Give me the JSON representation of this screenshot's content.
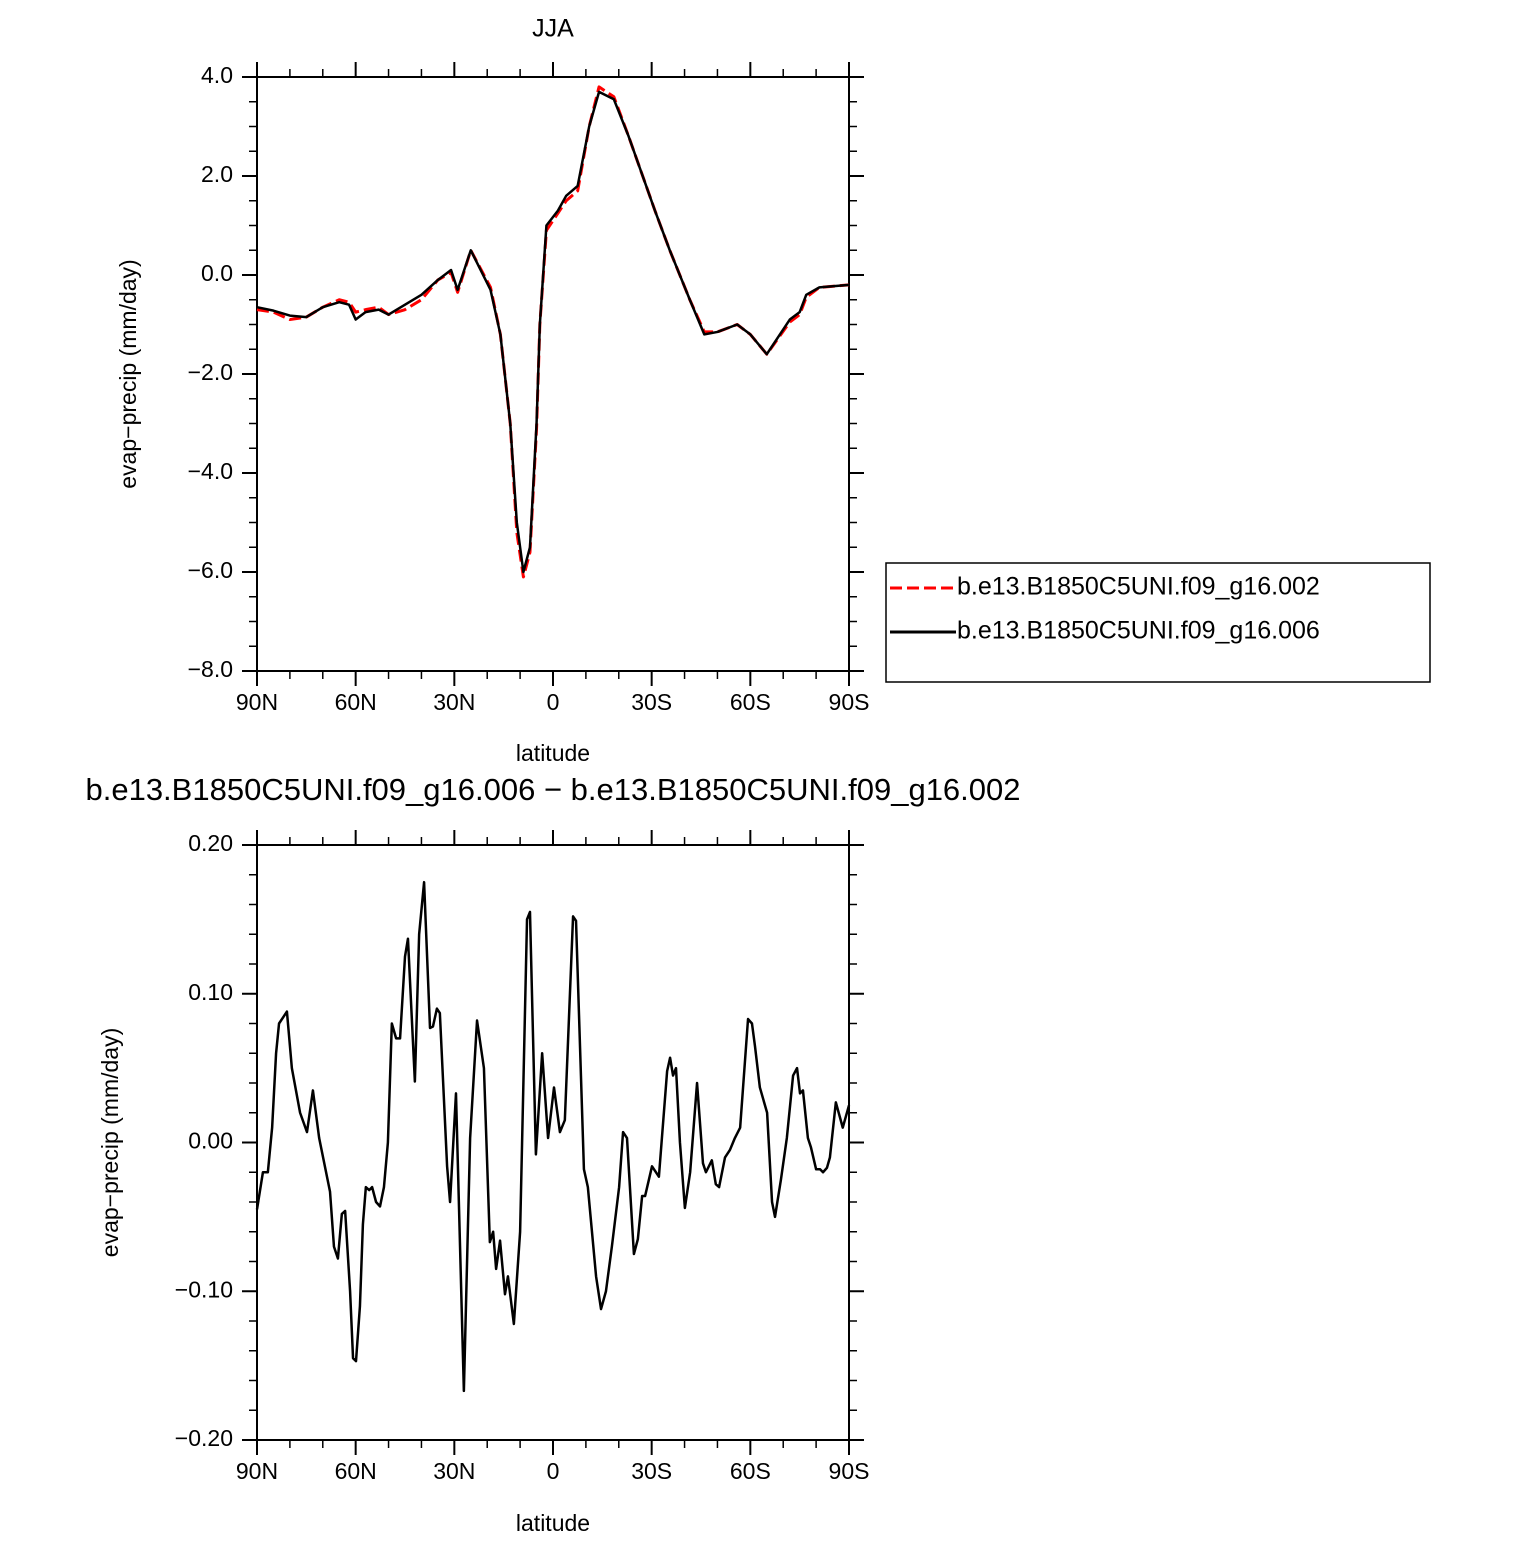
{
  "chart_data": [
    {
      "type": "line",
      "title": "JJA",
      "xlabel": "latitude",
      "ylabel": "evap−precip (mm/day)",
      "x": [
        90,
        85,
        80,
        75,
        70,
        65,
        62,
        60,
        57,
        53,
        50,
        45,
        40,
        35,
        31,
        29,
        25,
        19,
        16,
        13,
        11,
        9,
        7,
        5,
        4,
        2,
        -1.5,
        -4,
        -7.5,
        -11,
        -14,
        -18.5,
        -23,
        -31,
        -35.5,
        -41.6,
        -46,
        -50,
        -56,
        -60,
        -65,
        -72,
        -75,
        -77,
        -81,
        -90
      ],
      "series": [
        {
          "name": "b.e13.B1850C5UNI.f09_g16.002",
          "color": "#ff0000",
          "line_style": "dashed",
          "values": [
            -0.7,
            -0.75,
            -0.9,
            -0.85,
            -0.65,
            -0.5,
            -0.55,
            -0.75,
            -0.7,
            -0.65,
            -0.8,
            -0.7,
            -0.5,
            -0.1,
            0.05,
            -0.35,
            0.5,
            -0.25,
            -1.2,
            -3.0,
            -5.2,
            -6.1,
            -5.6,
            -3.1,
            -1.0,
            0.9,
            1.25,
            1.5,
            1.7,
            3.0,
            3.8,
            3.6,
            2.8,
            1.3,
            0.5,
            -0.5,
            -1.15,
            -1.15,
            -1.0,
            -1.2,
            -1.6,
            -0.95,
            -0.8,
            -0.45,
            -0.25,
            -0.2
          ]
        },
        {
          "name": "b.e13.B1850C5UNI.f09_g16.006",
          "color": "#000000",
          "line_style": "solid",
          "values": [
            -0.65,
            -0.72,
            -0.82,
            -0.85,
            -0.65,
            -0.55,
            -0.6,
            -0.9,
            -0.75,
            -0.7,
            -0.8,
            -0.6,
            -0.4,
            -0.1,
            0.1,
            -0.3,
            0.5,
            -0.3,
            -1.2,
            -3.0,
            -5.0,
            -6.0,
            -5.5,
            -3.0,
            -1.0,
            1.0,
            1.3,
            1.6,
            1.8,
            3.0,
            3.7,
            3.55,
            2.8,
            1.3,
            0.5,
            -0.5,
            -1.2,
            -1.15,
            -1.0,
            -1.2,
            -1.6,
            -0.9,
            -0.75,
            -0.4,
            -0.25,
            -0.2
          ]
        }
      ],
      "xlim": [
        90,
        -90
      ],
      "xticks": [
        {
          "value": 90,
          "label": "90N"
        },
        {
          "value": 60,
          "label": "60N"
        },
        {
          "value": 30,
          "label": "30N"
        },
        0,
        {
          "value": -30,
          "label": "30S"
        },
        {
          "value": -60,
          "label": "60S"
        },
        {
          "value": -90,
          "label": "90S"
        }
      ],
      "ylim": [
        -8,
        4
      ],
      "yticks": [
        {
          "value": 4,
          "label": "4.0"
        },
        {
          "value": 2,
          "label": "2.0"
        },
        {
          "value": 0,
          "label": "0.0"
        },
        {
          "value": -2,
          "label": "−2.0"
        },
        {
          "value": -4,
          "label": "−4.0"
        },
        {
          "value": -6,
          "label": "−6.0"
        },
        {
          "value": -8,
          "label": "−8.0"
        }
      ],
      "legend": "right"
    },
    {
      "type": "line",
      "title": "b.e13.B1850C5UNI.f09_g16.006 − b.e13.B1850C5UNI.f09_g16.002",
      "xlabel": "latitude",
      "ylabel": "evap−precip (mm/day)",
      "x": [
        90,
        88.2,
        86.7,
        85.4,
        84.2,
        83.3,
        80.9,
        79.4,
        76.9,
        74.8,
        73,
        71.1,
        67.8,
        66.6,
        65.4,
        64.2,
        63.2,
        61.7,
        60.8,
        59.9,
        58.7,
        57.8,
        56.9,
        55.9,
        55,
        53.8,
        52.6,
        51.4,
        50.2,
        49,
        47.7,
        46.5,
        45,
        44.1,
        42,
        40.7,
        39.2,
        37.4,
        36.5,
        35.3,
        34.4,
        32.2,
        31.3,
        29.5,
        27.1,
        25.2,
        23.1,
        21,
        19.2,
        18.2,
        17.3,
        16.1,
        14.6,
        13.7,
        11.9,
        10,
        7.9,
        7,
        5.2,
        3.3,
        1.5,
        -0.3,
        -2.1,
        -3.6,
        -6.1,
        -7,
        -9.4,
        -10.6,
        -13.1,
        -14.6,
        -16.1,
        -17.9,
        -20.1,
        -21.3,
        -22.5,
        -24.6,
        -25.8,
        -27.1,
        -28,
        -30.1,
        -32.2,
        -34.7,
        -35.6,
        -36.5,
        -37.4,
        -38.6,
        -40.1,
        -41.7,
        -43.8,
        -45.6,
        -46.5,
        -48.3,
        -49.5,
        -50.5,
        -52.3,
        -53.8,
        -55.3,
        -56.9,
        -59.3,
        -60.5,
        -61.4,
        -62.9,
        -65.1,
        -66.6,
        -67.5,
        -69.3,
        -71.1,
        -73,
        -74.2,
        -75.1,
        -76,
        -77.5,
        -78.4,
        -80,
        -81.2,
        -82.1,
        -83.3,
        -84.2,
        -86,
        -88.1,
        -90
      ],
      "values": [
        -0.045,
        -0.02,
        -0.02,
        0.01,
        0.06,
        0.08,
        0.088,
        0.05,
        0.02,
        0.007,
        0.035,
        0.003,
        -0.033,
        -0.07,
        -0.078,
        -0.048,
        -0.046,
        -0.1,
        -0.145,
        -0.147,
        -0.11,
        -0.055,
        -0.03,
        -0.032,
        -0.03,
        -0.04,
        -0.043,
        -0.03,
        0.0,
        0.08,
        0.07,
        0.07,
        0.125,
        0.137,
        0.041,
        0.14,
        0.175,
        0.077,
        0.078,
        0.09,
        0.087,
        -0.016,
        -0.04,
        0.033,
        -0.167,
        0.003,
        0.082,
        0.05,
        -0.067,
        -0.06,
        -0.085,
        -0.066,
        -0.102,
        -0.09,
        -0.122,
        -0.06,
        0.15,
        0.155,
        -0.008,
        0.06,
        0.003,
        0.037,
        0.007,
        0.015,
        0.152,
        0.149,
        -0.018,
        -0.03,
        -0.09,
        -0.112,
        -0.1,
        -0.07,
        -0.03,
        0.007,
        0.003,
        -0.075,
        -0.065,
        -0.036,
        -0.036,
        -0.016,
        -0.023,
        0.048,
        0.057,
        0.045,
        0.05,
        0.0,
        -0.044,
        -0.02,
        0.04,
        -0.014,
        -0.02,
        -0.012,
        -0.028,
        -0.03,
        -0.01,
        -0.005,
        0.003,
        0.01,
        0.083,
        0.08,
        0.065,
        0.037,
        0.02,
        -0.04,
        -0.05,
        -0.025,
        0.003,
        0.045,
        0.05,
        0.033,
        0.035,
        0.003,
        -0.003,
        -0.018,
        -0.018,
        -0.02,
        -0.017,
        -0.01,
        0.027,
        0.01,
        0.025
      ],
      "color": "#000000",
      "xlim": [
        90,
        -90
      ],
      "xticks": [
        {
          "value": 90,
          "label": "90N"
        },
        {
          "value": 60,
          "label": "60N"
        },
        {
          "value": 30,
          "label": "30N"
        },
        0,
        {
          "value": -30,
          "label": "30S"
        },
        {
          "value": -60,
          "label": "60S"
        },
        {
          "value": -90,
          "label": "90S"
        }
      ],
      "ylim": [
        -0.2,
        0.2
      ],
      "yticks": [
        {
          "value": 0.2,
          "label": "0.20"
        },
        {
          "value": 0.1,
          "label": "0.10"
        },
        {
          "value": 0,
          "label": "0.00"
        },
        {
          "value": -0.1,
          "label": "−0.10"
        },
        {
          "value": -0.2,
          "label": "−0.20"
        }
      ]
    }
  ]
}
